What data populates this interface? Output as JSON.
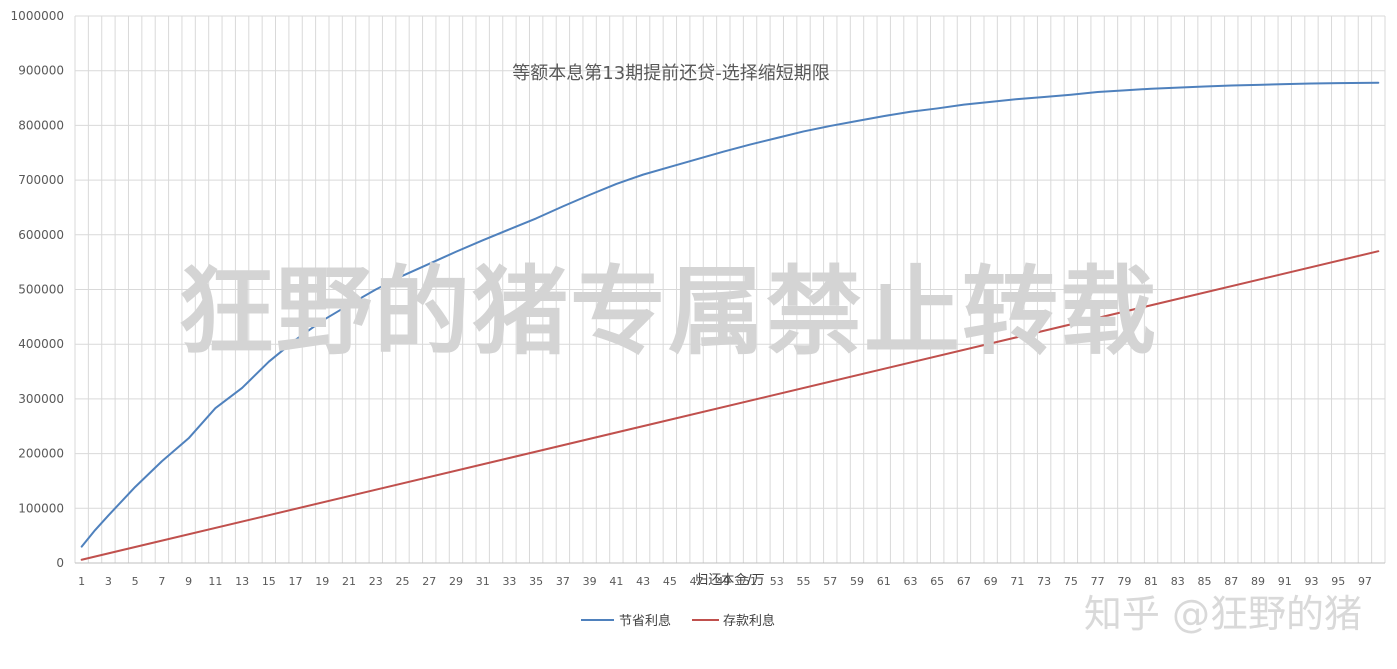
{
  "chart_data": {
    "type": "line",
    "title": "等额本息第13期提前还贷-选择缩短期限",
    "xlabel": "归还本金/万",
    "ylabel": "",
    "ylim": [
      0,
      1000000
    ],
    "y_ticks": [
      "0",
      "100000",
      "200000",
      "300000",
      "400000",
      "500000",
      "600000",
      "700000",
      "800000",
      "900000",
      "1000000"
    ],
    "x_range": [
      1,
      98
    ],
    "x_ticks": [
      "1",
      "3",
      "5",
      "7",
      "9",
      "11",
      "13",
      "15",
      "17",
      "19",
      "21",
      "23",
      "25",
      "27",
      "29",
      "31",
      "33",
      "35",
      "37",
      "39",
      "41",
      "43",
      "45",
      "47",
      "49",
      "51",
      "53",
      "55",
      "57",
      "59",
      "61",
      "63",
      "65",
      "67",
      "69",
      "71",
      "73",
      "75",
      "77",
      "79",
      "81",
      "83",
      "85",
      "87",
      "89",
      "91",
      "93",
      "95",
      "97"
    ],
    "grid": "vertical-and-horizontal",
    "legend_position": "bottom",
    "series": [
      {
        "name": "节省利息",
        "color": "#4f81bd",
        "x": [
          1,
          2,
          3,
          5,
          7,
          9,
          11,
          13,
          15,
          17,
          19,
          21,
          23,
          25,
          27,
          29,
          31,
          33,
          35,
          37,
          39,
          41,
          43,
          45,
          47,
          49,
          51,
          53,
          55,
          57,
          59,
          61,
          63,
          65,
          67,
          69,
          71,
          73,
          75,
          77,
          79,
          81,
          83,
          85,
          87,
          89,
          91,
          93,
          95,
          97,
          98
        ],
        "values": [
          30000,
          60000,
          87000,
          139000,
          186000,
          228000,
          283000,
          320000,
          368000,
          408000,
          443000,
          472000,
          500000,
          525000,
          547000,
          569000,
          590000,
          610000,
          630000,
          652000,
          673000,
          693000,
          710000,
          724000,
          738000,
          752000,
          765000,
          777000,
          789000,
          799000,
          808000,
          817000,
          825000,
          831000,
          838000,
          843000,
          848000,
          852000,
          856000,
          861000,
          864000,
          867000,
          869000,
          871000,
          873000,
          874000,
          875500,
          876500,
          877200,
          877800,
          878000
        ]
      },
      {
        "name": "存款利息",
        "color": "#c0504d",
        "x": [
          1,
          98
        ],
        "values": [
          6000,
          570000
        ]
      }
    ]
  },
  "watermarks": {
    "main": "狂野的猪专属禁止转载",
    "brand": "知乎 @狂野的猪"
  }
}
